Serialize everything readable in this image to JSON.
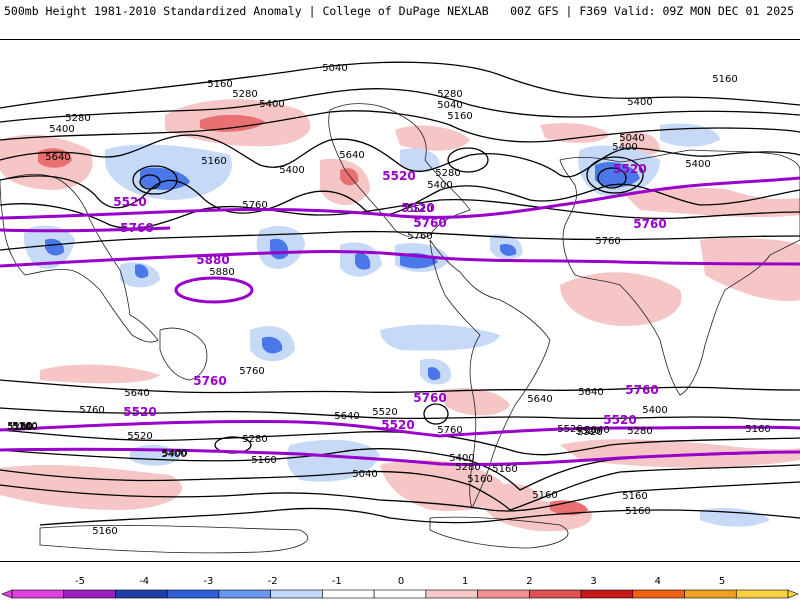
{
  "header": {
    "title": "500mb Height 1981-2010 Standardized Anomaly | College of DuPage NEXLAB",
    "run": "00Z GFS | F369 Valid: 09Z MON DEC 01 2025"
  },
  "contour_labels": {
    "black": [
      "5040",
      "5160",
      "5280",
      "5400",
      "5400",
      "5280",
      "5040",
      "5160",
      "5280",
      "5400",
      "5040",
      "5160",
      "5640",
      "5160",
      "5400",
      "5640",
      "5280",
      "5400",
      "5400",
      "5400",
      "5520",
      "5760",
      "5760",
      "5880",
      "5760",
      "5760",
      "5640",
      "5760",
      "5640",
      "5520",
      "5760",
      "5400",
      "5280",
      "5160",
      "5040",
      "5160",
      "5520",
      "5640",
      "5160",
      "5280",
      "5400",
      "5520",
      "5280",
      "5160",
      "5400",
      "5160",
      "5040",
      "5640",
      "5160",
      "5280",
      "5520",
      "5400",
      "5520",
      "5280",
      "5160",
      "5160",
      "5160",
      "5160"
    ],
    "purple": [
      "5520",
      "5520",
      "5520",
      "5520",
      "5760",
      "5760",
      "5760",
      "5880",
      "5760",
      "5760",
      "5760",
      "5520",
      "5520",
      "5520"
    ]
  },
  "colorbar": {
    "ticks": [
      "-5",
      "-4",
      "-3",
      "-2",
      "-1",
      "0",
      "1",
      "2",
      "3",
      "4",
      "5"
    ],
    "colors": [
      "#e040e0",
      "#9a20c0",
      "#1e3ea8",
      "#3060d8",
      "#6a96f0",
      "#c2d8f8",
      "#ffffff",
      "#ffffff",
      "#f8c8c8",
      "#f09090",
      "#e05050",
      "#c81818",
      "#f06010",
      "#f0a020",
      "#f8d040"
    ]
  },
  "theme": {
    "positive": "#f4c0c0",
    "positive_strong": "#e86a6a",
    "negative": "#c8dcf8",
    "negative_strong": "#4a78e8",
    "purple": "#9900cc"
  }
}
